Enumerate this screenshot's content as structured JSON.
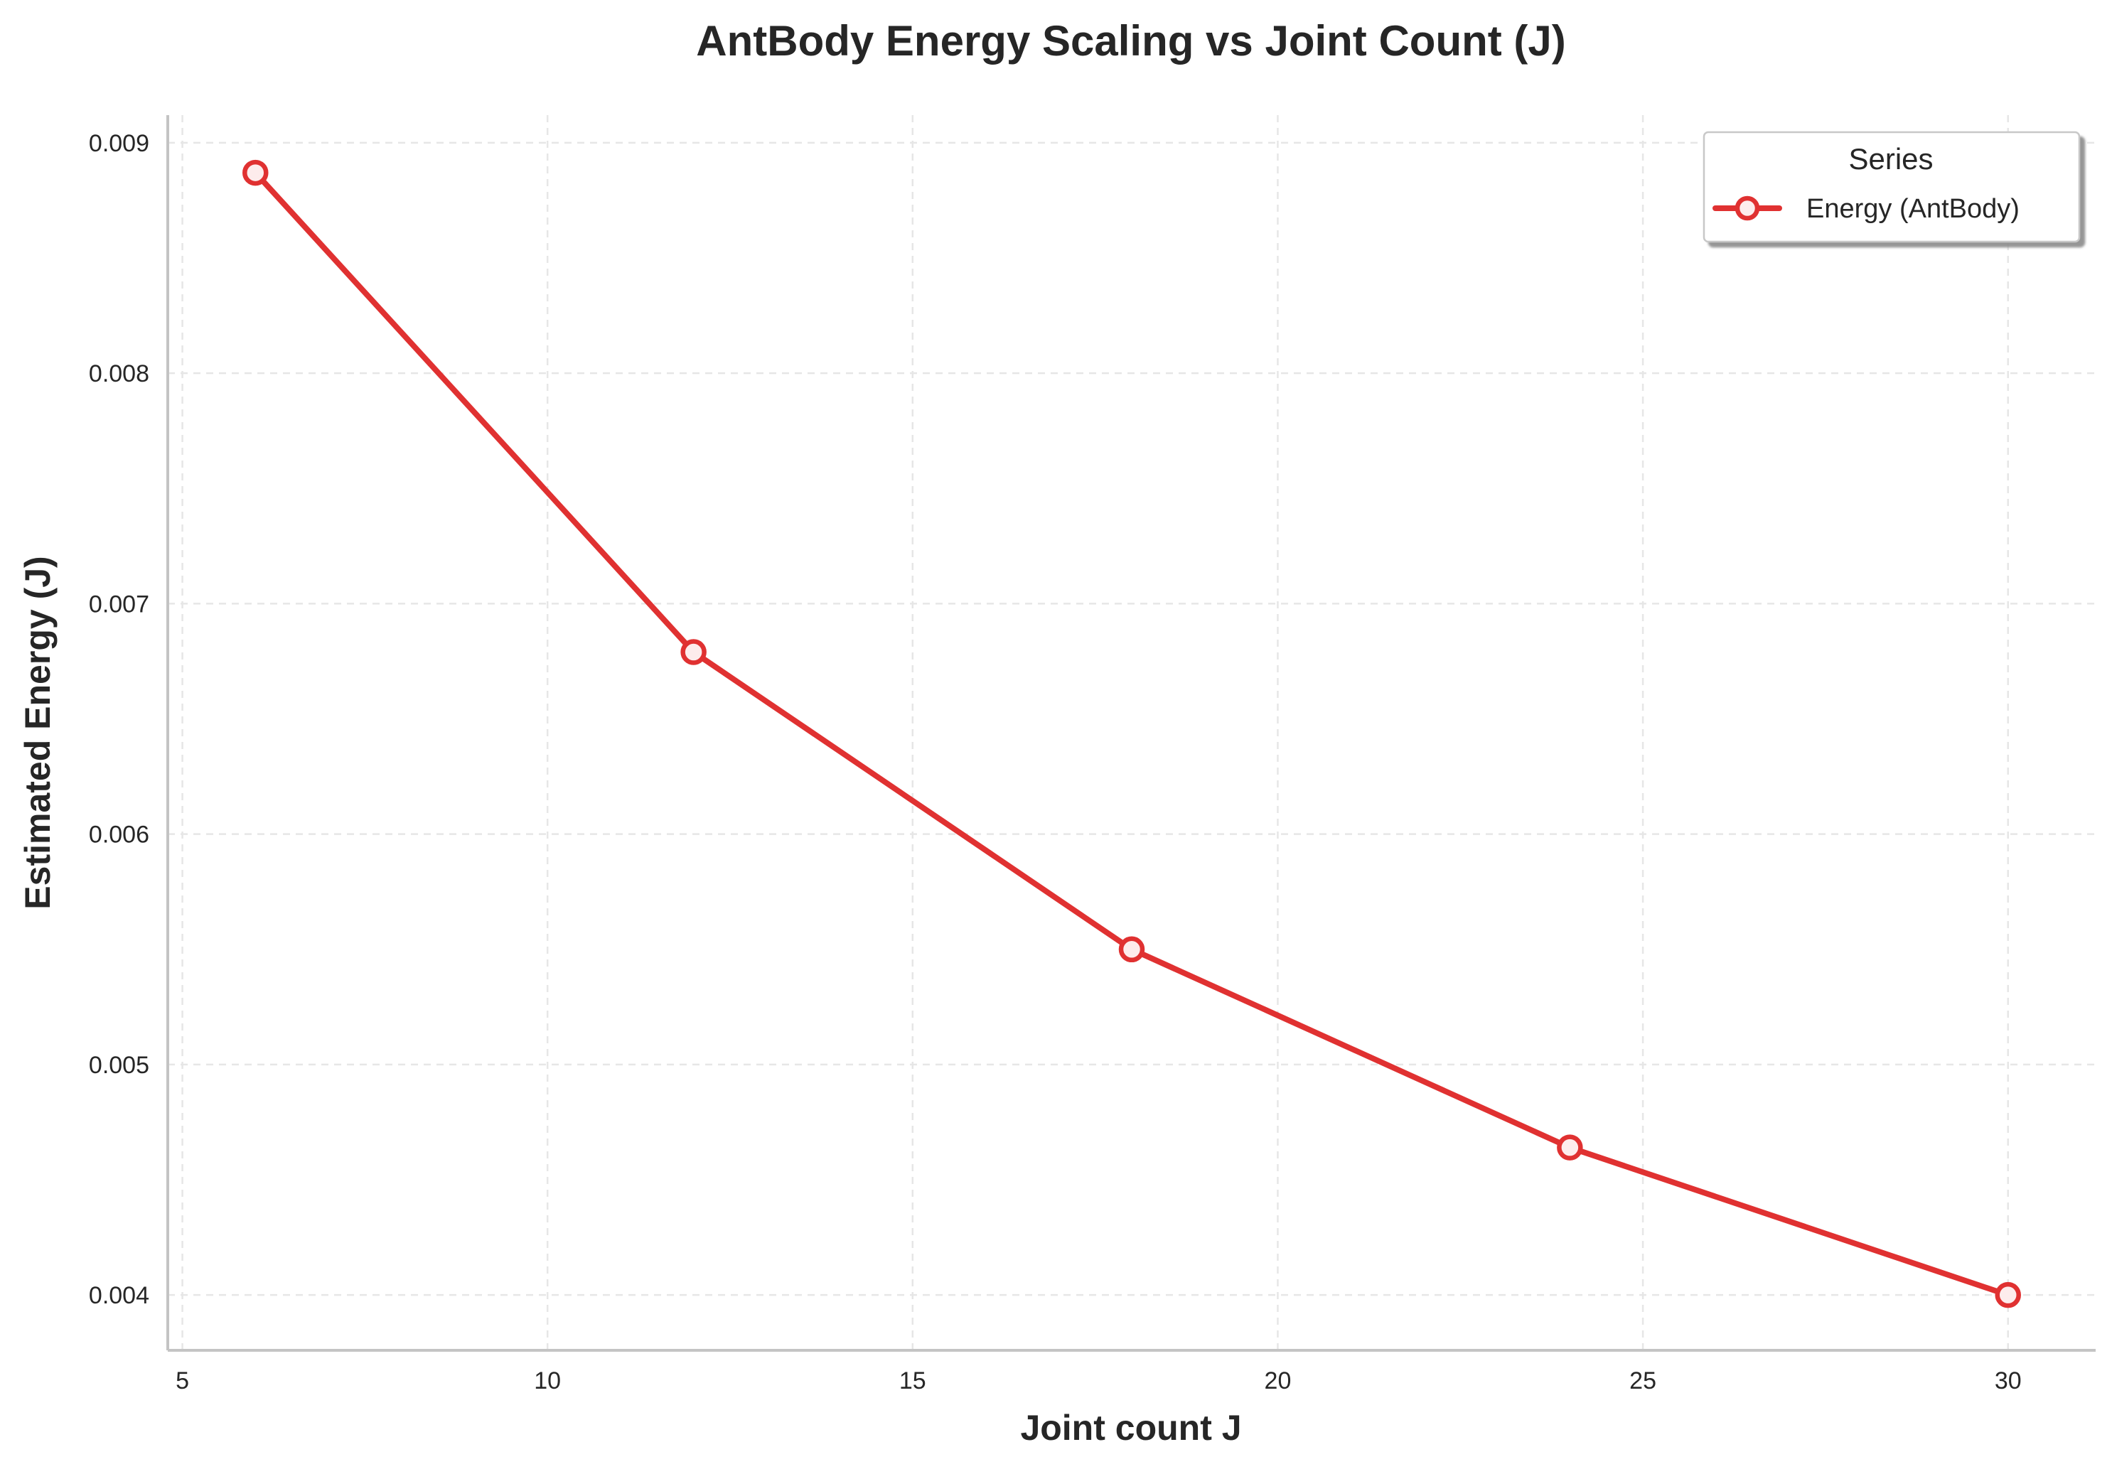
{
  "chart_data": {
    "type": "line",
    "title": "AntBody Energy Scaling vs Joint Count (J)",
    "xlabel": "Joint count J",
    "ylabel": "Estimated Energy (J)",
    "x": [
      6,
      12,
      18,
      24,
      30
    ],
    "series": [
      {
        "name": "Energy (AntBody)",
        "values": [
          0.00887,
          0.00679,
          0.0055,
          0.00464,
          0.004
        ],
        "color": "#e03131",
        "marker": "hollow-circle"
      }
    ],
    "xlim": [
      4.8,
      31.2
    ],
    "ylim": [
      0.00376,
      0.00912
    ],
    "xticks": [
      5,
      10,
      15,
      20,
      25,
      30
    ],
    "yticks": [
      0.004,
      0.005,
      0.006,
      0.007,
      0.008,
      0.009
    ],
    "xtick_labels": [
      "5",
      "10",
      "15",
      "20",
      "25",
      "30"
    ],
    "ytick_labels": [
      "0.004",
      "0.005",
      "0.006",
      "0.007",
      "0.008",
      "0.009"
    ],
    "grid": true,
    "legend": {
      "title": "Series",
      "position": "top-right"
    }
  }
}
